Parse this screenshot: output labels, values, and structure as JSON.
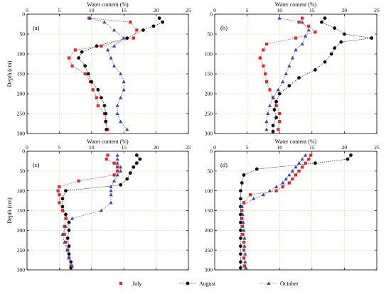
{
  "colors": {
    "July": "#e8232b",
    "August": "#111111",
    "October": "#3548b4",
    "grid": "#9be07a"
  },
  "legend": [
    {
      "name": "July",
      "marker": "square"
    },
    {
      "name": "August",
      "marker": "circle"
    },
    {
      "name": "October",
      "marker": "triangle"
    }
  ],
  "chart_data": [
    {
      "type": "line",
      "panel_label": "(a)",
      "xlabel": "Water content  (%)",
      "ylabel": "Depth (cm)",
      "xlim": [
        0,
        25
      ],
      "ylim": [
        0,
        300
      ],
      "x_ticks": [
        0,
        5,
        10,
        15,
        20,
        25
      ],
      "y_ticks": [
        0,
        50,
        100,
        150,
        200,
        250,
        300
      ],
      "grid": true,
      "series": [
        {
          "name": "July",
          "y": [
            10,
            20,
            40,
            60,
            80,
            90,
            110,
            130,
            150,
            170,
            190,
            210,
            230,
            250,
            270,
            290
          ],
          "x": [
            9.6,
            16.0,
            17.0,
            16.5,
            11.5,
            7.5,
            6.5,
            7.0,
            9.0,
            9.8,
            10.2,
            10.8,
            11.0,
            12.0,
            12.2,
            12.5
          ]
        },
        {
          "name": "August",
          "y": [
            10,
            20,
            30,
            40,
            60,
            80,
            95,
            110,
            130,
            150,
            170,
            190,
            210,
            230,
            250,
            270,
            290
          ],
          "x": [
            20.5,
            21.0,
            19.6,
            18.0,
            15.5,
            10.8,
            8.5,
            8.0,
            9.0,
            9.5,
            10.0,
            11.0,
            11.5,
            12.0,
            12.2,
            12.2,
            12.3
          ]
        },
        {
          "name": "October",
          "y": [
            10,
            20,
            40,
            60,
            80,
            90,
            110,
            130,
            150,
            170,
            190,
            210,
            230,
            250,
            270,
            290
          ],
          "x": [
            9.8,
            12.0,
            13.5,
            15.0,
            13.5,
            12.5,
            13.0,
            13.5,
            14.5,
            15.0,
            15.0,
            14.5,
            14.0,
            14.0,
            14.5,
            15.5
          ]
        }
      ]
    },
    {
      "type": "line",
      "panel_label": "(b)",
      "xlabel": "Water content  (%)",
      "ylabel": "",
      "xlim": [
        0,
        25
      ],
      "ylim": [
        0,
        300
      ],
      "x_ticks": [
        0,
        5,
        10,
        15,
        20,
        25
      ],
      "y_ticks": [
        0,
        50,
        100,
        150,
        200,
        250,
        300
      ],
      "grid": true,
      "series": [
        {
          "name": "July",
          "y": [
            10,
            20,
            30,
            45,
            60,
            75,
            90,
            110,
            130,
            150,
            170,
            190,
            210,
            230,
            250,
            270,
            290
          ],
          "x": [
            13.5,
            13.0,
            14.5,
            15.5,
            12.5,
            8.0,
            7.5,
            7.0,
            7.5,
            7.8,
            8.0,
            8.5,
            9.0,
            9.5,
            10.0,
            10.0,
            9.8
          ]
        },
        {
          "name": "August",
          "y": [
            10,
            20,
            35,
            50,
            60,
            70,
            85,
            100,
            120,
            140,
            160,
            180,
            200,
            220,
            240,
            260,
            280,
            295
          ],
          "x": [
            17.0,
            16.5,
            18.5,
            20.0,
            24.2,
            19.5,
            18.5,
            18.0,
            17.0,
            15.5,
            13.0,
            11.5,
            10.0,
            9.5,
            9.2,
            9.5,
            9.0,
            9.0
          ]
        },
        {
          "name": "October",
          "y": [
            10,
            20,
            40,
            55,
            75,
            90,
            110,
            130,
            150,
            170,
            190,
            210,
            230,
            250,
            270,
            290
          ],
          "x": [
            10.0,
            13.5,
            14.5,
            14.0,
            13.5,
            12.5,
            12.0,
            11.5,
            11.0,
            10.5,
            9.8,
            9.0,
            8.5,
            8.2,
            8.0,
            8.0
          ]
        }
      ]
    },
    {
      "type": "line",
      "panel_label": "(c)",
      "xlabel": "Water content  (%)",
      "ylabel": "Depth (cm)",
      "xlim": [
        0,
        25
      ],
      "ylim": [
        0,
        300
      ],
      "x_ticks": [
        0,
        5,
        10,
        15,
        20,
        25
      ],
      "y_ticks": [
        0,
        50,
        100,
        150,
        200,
        250,
        300
      ],
      "grid": true,
      "series": [
        {
          "name": "July",
          "y": [
            10,
            20,
            30,
            40,
            50,
            60,
            75,
            90,
            100,
            110,
            130,
            150,
            170,
            190,
            210,
            230,
            250,
            270,
            290
          ],
          "x": [
            12.5,
            12.3,
            13.5,
            14.0,
            14.0,
            13.5,
            8.0,
            5.0,
            4.8,
            5.0,
            5.0,
            5.5,
            6.0,
            5.8,
            5.8,
            6.0,
            6.3,
            6.5,
            6.8
          ]
        },
        {
          "name": "August",
          "y": [
            10,
            20,
            30,
            40,
            55,
            70,
            85,
            100,
            120,
            140,
            160,
            180,
            200,
            220,
            240,
            260,
            280,
            295
          ],
          "x": [
            17.0,
            17.5,
            17.0,
            16.5,
            16.0,
            15.5,
            14.5,
            6.0,
            5.5,
            5.5,
            6.0,
            6.5,
            6.5,
            6.3,
            6.5,
            6.5,
            6.8,
            6.8
          ]
        },
        {
          "name": "October",
          "y": [
            10,
            20,
            30,
            40,
            50,
            60,
            75,
            90,
            100,
            110,
            130,
            150,
            170,
            190,
            210,
            230,
            250,
            270,
            290
          ],
          "x": [
            14.0,
            14.0,
            14.0,
            14.5,
            14.5,
            14.0,
            13.5,
            13.0,
            13.0,
            13.0,
            13.0,
            11.5,
            7.0,
            6.0,
            5.5,
            5.8,
            6.2,
            6.5,
            7.0
          ]
        }
      ]
    },
    {
      "type": "line",
      "panel_label": "(d)",
      "xlabel": "Water content  (%)",
      "ylabel": "",
      "xlim": [
        0,
        25
      ],
      "ylim": [
        0,
        300
      ],
      "x_ticks": [
        0,
        5,
        10,
        15,
        20,
        25
      ],
      "y_ticks": [
        0,
        50,
        100,
        150,
        200,
        250,
        300
      ],
      "grid": true,
      "series": [
        {
          "name": "July",
          "y": [
            10,
            20,
            30,
            40,
            50,
            60,
            70,
            80,
            90,
            100,
            110,
            130,
            150,
            170,
            190,
            210,
            230,
            250,
            270,
            290
          ],
          "x": [
            14.8,
            14.5,
            14.0,
            13.5,
            13.0,
            12.5,
            12.0,
            11.5,
            10.5,
            9.5,
            5.5,
            4.5,
            4.2,
            4.2,
            4.3,
            4.3,
            4.5,
            4.5,
            4.5,
            4.6
          ]
        },
        {
          "name": "August",
          "y": [
            10,
            20,
            30,
            45,
            60,
            80,
            100,
            120,
            140,
            160,
            180,
            200,
            220,
            240,
            260,
            280,
            295
          ],
          "x": [
            21.0,
            20.5,
            15.5,
            6.5,
            4.5,
            4.2,
            4.0,
            4.0,
            4.0,
            4.0,
            4.0,
            4.0,
            4.0,
            4.0,
            4.0,
            4.0,
            4.0
          ]
        },
        {
          "name": "October",
          "y": [
            10,
            20,
            30,
            40,
            50,
            60,
            70,
            80,
            90,
            100,
            110,
            120,
            140,
            160,
            180,
            200,
            220,
            240,
            260,
            280,
            295
          ],
          "x": [
            14.0,
            13.5,
            13.0,
            12.5,
            12.0,
            11.5,
            11.0,
            10.5,
            9.5,
            8.5,
            7.5,
            6.0,
            4.2,
            4.3,
            4.4,
            4.5,
            4.6,
            4.6,
            4.7,
            4.7,
            4.8
          ]
        }
      ]
    }
  ]
}
